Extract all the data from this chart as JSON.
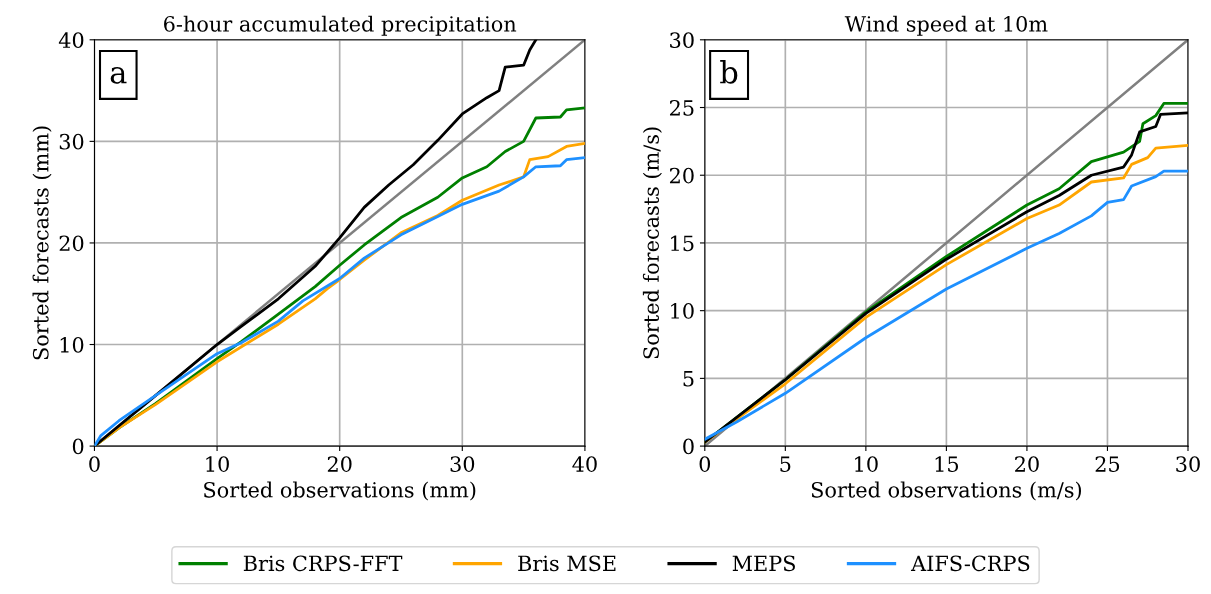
{
  "chart_data": [
    {
      "type": "line",
      "title": "6-hour accumulated precipitation",
      "xlabel": "Sorted observations (mm)",
      "ylabel": "Sorted forecasts (mm)",
      "xlim": [
        0,
        40
      ],
      "ylim": [
        0,
        40
      ],
      "xticks": [
        0,
        10,
        20,
        30,
        40
      ],
      "yticks": [
        0,
        10,
        20,
        30,
        40
      ],
      "grid": true,
      "legend": "bottom",
      "annotations": [
        "a"
      ],
      "series": [
        {
          "name": "Bris CRPS-FFT",
          "color": "#008000",
          "x": [
            0,
            2,
            5,
            10,
            12,
            15,
            18,
            20,
            22,
            25,
            28,
            30,
            32,
            33.5,
            35,
            36,
            38,
            38.5,
            40
          ],
          "values": [
            0,
            1.8,
            4.2,
            8.6,
            10.3,
            13,
            15.7,
            17.8,
            19.8,
            22.5,
            24.5,
            26.4,
            27.5,
            29,
            30,
            32.3,
            32.4,
            33.1,
            33.3
          ]
        },
        {
          "name": "Bris MSE",
          "color": "#ffa500",
          "x": [
            0,
            2,
            5,
            10,
            15,
            18,
            19,
            20,
            22,
            25,
            28,
            30,
            33,
            35,
            35.5,
            37,
            38.5,
            40
          ],
          "values": [
            0,
            1.8,
            4.1,
            8.3,
            12,
            14.5,
            15.5,
            16.4,
            18.3,
            21,
            22.7,
            24.2,
            25.7,
            26.5,
            28.2,
            28.5,
            29.5,
            29.8
          ]
        },
        {
          "name": "MEPS",
          "color": "#000000",
          "x": [
            0,
            2,
            5,
            10,
            12,
            15,
            18,
            20,
            22,
            24,
            26,
            28,
            30,
            32,
            33,
            33.5,
            35,
            35.5,
            36
          ],
          "values": [
            0,
            2,
            5,
            10,
            11.8,
            14.5,
            17.7,
            20.5,
            23.5,
            25.7,
            27.7,
            30.1,
            32.7,
            34.3,
            35,
            37.3,
            37.5,
            39,
            40
          ]
        },
        {
          "name": "AIFS-CRPS",
          "color": "#1e90ff",
          "x": [
            0,
            0.5,
            2,
            5,
            10,
            12,
            15,
            17,
            20,
            22,
            25,
            28,
            30,
            33,
            35,
            36,
            38,
            38.5,
            40
          ],
          "values": [
            0,
            1,
            2.5,
            5,
            9.1,
            10.2,
            12.3,
            14.3,
            16.5,
            18.5,
            20.8,
            22.6,
            23.8,
            25.1,
            26.5,
            27.5,
            27.6,
            28.2,
            28.4
          ]
        },
        {
          "color": "#808080",
          "x": [
            0,
            40
          ],
          "values": [
            0,
            40
          ]
        }
      ]
    },
    {
      "type": "line",
      "title": "Wind speed at 10m",
      "xlabel": "Sorted observations (m/s)",
      "ylabel": "Sorted forecasts (m/s)",
      "xlim": [
        0,
        30
      ],
      "ylim": [
        0,
        30
      ],
      "xticks": [
        0,
        5,
        10,
        15,
        20,
        25,
        30
      ],
      "yticks": [
        0,
        5,
        10,
        15,
        20,
        25,
        30
      ],
      "grid": true,
      "legend": "bottom",
      "annotations": [
        "b"
      ],
      "series": [
        {
          "name": "Bris CRPS-FFT",
          "color": "#008000",
          "x": [
            0,
            5,
            10,
            15,
            20,
            22,
            24,
            26,
            27,
            27.2,
            28,
            28.5,
            30
          ],
          "values": [
            0.3,
            4.9,
            9.9,
            14,
            17.8,
            19,
            21,
            21.7,
            22.5,
            23.8,
            24.4,
            25.3,
            25.3
          ]
        },
        {
          "name": "Bris MSE",
          "color": "#ffa500",
          "x": [
            0,
            5,
            10,
            15,
            20,
            22,
            24,
            26,
            26.5,
            27.5,
            28,
            30
          ],
          "values": [
            0.3,
            4.6,
            9.5,
            13.4,
            16.8,
            17.8,
            19.5,
            19.8,
            20.8,
            21.3,
            22,
            22.2
          ]
        },
        {
          "name": "MEPS",
          "color": "#000000",
          "x": [
            0,
            5,
            10,
            15,
            20,
            22,
            24,
            26,
            26.5,
            27,
            28,
            28.3,
            30
          ],
          "values": [
            0.3,
            4.9,
            9.8,
            13.8,
            17.3,
            18.5,
            20,
            20.6,
            21.5,
            23.2,
            23.6,
            24.5,
            24.6
          ]
        },
        {
          "name": "AIFS-CRPS",
          "color": "#1e90ff",
          "x": [
            0,
            2,
            5,
            10,
            15,
            20,
            22,
            24,
            25,
            26,
            26.5,
            28,
            28.5,
            30
          ],
          "values": [
            0.5,
            1.8,
            3.9,
            8,
            11.6,
            14.6,
            15.7,
            17,
            18,
            18.2,
            19.2,
            19.9,
            20.3,
            20.3
          ]
        },
        {
          "color": "#808080",
          "x": [
            0,
            30
          ],
          "values": [
            0,
            30
          ]
        }
      ]
    }
  ]
}
